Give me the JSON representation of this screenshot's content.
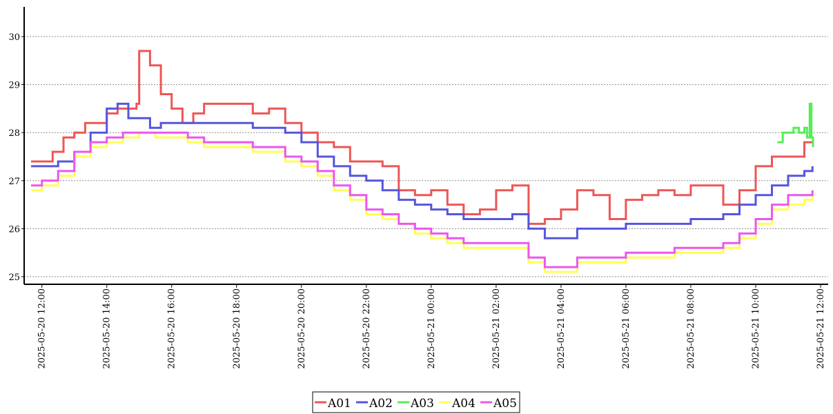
{
  "chart_data": {
    "type": "line",
    "title": "",
    "xlabel": "",
    "ylabel": "",
    "x_range": [
      "2025-05-20 11:40",
      "2025-05-21 12:00"
    ],
    "ylim": [
      24.8,
      30.6
    ],
    "y_ticks": [
      25,
      26,
      27,
      28,
      29,
      30
    ],
    "x_ticks": [
      "2025-05-20 12:00",
      "2025-05-20 14:00",
      "2025-05-20 16:00",
      "2025-05-20 18:00",
      "2025-05-20 20:00",
      "2025-05-20 22:00",
      "2025-05-21 00:00",
      "2025-05-21 02:00",
      "2025-05-21 04:00",
      "2025-05-21 06:00",
      "2025-05-21 08:00",
      "2025-05-21 10:00",
      "2025-05-21 12:00"
    ],
    "grid": "horizontal-dotted",
    "legend_position": "bottom-center",
    "series": [
      {
        "name": "A01",
        "color": "#ee5555",
        "points": [
          [
            "2025-05-20 11:40",
            27.4
          ],
          [
            "2025-05-20 12:00",
            27.4
          ],
          [
            "2025-05-20 12:20",
            27.6
          ],
          [
            "2025-05-20 12:40",
            27.9
          ],
          [
            "2025-05-20 13:00",
            28.0
          ],
          [
            "2025-05-20 13:20",
            28.2
          ],
          [
            "2025-05-20 13:40",
            28.2
          ],
          [
            "2025-05-20 14:00",
            28.4
          ],
          [
            "2025-05-20 14:20",
            28.5
          ],
          [
            "2025-05-20 14:40",
            28.5
          ],
          [
            "2025-05-20 14:55",
            28.6
          ],
          [
            "2025-05-20 15:00",
            29.7
          ],
          [
            "2025-05-20 15:20",
            29.4
          ],
          [
            "2025-05-20 15:40",
            28.8
          ],
          [
            "2025-05-20 16:00",
            28.5
          ],
          [
            "2025-05-20 16:20",
            28.2
          ],
          [
            "2025-05-20 16:40",
            28.4
          ],
          [
            "2025-05-20 17:00",
            28.6
          ],
          [
            "2025-05-20 17:30",
            28.6
          ],
          [
            "2025-05-20 18:00",
            28.6
          ],
          [
            "2025-05-20 18:30",
            28.4
          ],
          [
            "2025-05-20 19:00",
            28.5
          ],
          [
            "2025-05-20 19:30",
            28.2
          ],
          [
            "2025-05-20 20:00",
            28.0
          ],
          [
            "2025-05-20 20:30",
            27.8
          ],
          [
            "2025-05-20 21:00",
            27.7
          ],
          [
            "2025-05-20 21:30",
            27.4
          ],
          [
            "2025-05-20 22:00",
            27.4
          ],
          [
            "2025-05-20 22:30",
            27.3
          ],
          [
            "2025-05-20 23:00",
            26.8
          ],
          [
            "2025-05-20 23:30",
            26.7
          ],
          [
            "2025-05-21 00:00",
            26.8
          ],
          [
            "2025-05-21 00:30",
            26.5
          ],
          [
            "2025-05-21 01:00",
            26.3
          ],
          [
            "2025-05-21 01:30",
            26.4
          ],
          [
            "2025-05-21 02:00",
            26.8
          ],
          [
            "2025-05-21 02:30",
            26.9
          ],
          [
            "2025-05-21 03:00",
            26.1
          ],
          [
            "2025-05-21 03:30",
            26.2
          ],
          [
            "2025-05-21 04:00",
            26.4
          ],
          [
            "2025-05-21 04:30",
            26.8
          ],
          [
            "2025-05-21 05:00",
            26.7
          ],
          [
            "2025-05-21 05:30",
            26.2
          ],
          [
            "2025-05-21 06:00",
            26.6
          ],
          [
            "2025-05-21 06:30",
            26.7
          ],
          [
            "2025-05-21 07:00",
            26.8
          ],
          [
            "2025-05-21 07:30",
            26.7
          ],
          [
            "2025-05-21 08:00",
            26.9
          ],
          [
            "2025-05-21 08:30",
            26.9
          ],
          [
            "2025-05-21 09:00",
            26.5
          ],
          [
            "2025-05-21 09:30",
            26.8
          ],
          [
            "2025-05-21 10:00",
            27.3
          ],
          [
            "2025-05-21 10:30",
            27.5
          ],
          [
            "2025-05-21 11:00",
            27.5
          ],
          [
            "2025-05-21 11:30",
            27.8
          ],
          [
            "2025-05-21 11:45",
            27.8
          ]
        ]
      },
      {
        "name": "A02",
        "color": "#5555dd",
        "points": [
          [
            "2025-05-20 11:40",
            27.3
          ],
          [
            "2025-05-20 12:00",
            27.3
          ],
          [
            "2025-05-20 12:30",
            27.4
          ],
          [
            "2025-05-20 13:00",
            27.6
          ],
          [
            "2025-05-20 13:30",
            28.0
          ],
          [
            "2025-05-20 14:00",
            28.5
          ],
          [
            "2025-05-20 14:20",
            28.6
          ],
          [
            "2025-05-20 14:40",
            28.3
          ],
          [
            "2025-05-20 15:00",
            28.3
          ],
          [
            "2025-05-20 15:20",
            28.1
          ],
          [
            "2025-05-20 15:40",
            28.2
          ],
          [
            "2025-05-20 16:00",
            28.2
          ],
          [
            "2025-05-20 17:00",
            28.2
          ],
          [
            "2025-05-20 18:00",
            28.2
          ],
          [
            "2025-05-20 18:30",
            28.1
          ],
          [
            "2025-05-20 19:00",
            28.1
          ],
          [
            "2025-05-20 19:30",
            28.0
          ],
          [
            "2025-05-20 20:00",
            27.8
          ],
          [
            "2025-05-20 20:30",
            27.5
          ],
          [
            "2025-05-20 21:00",
            27.3
          ],
          [
            "2025-05-20 21:30",
            27.1
          ],
          [
            "2025-05-20 22:00",
            27.0
          ],
          [
            "2025-05-20 22:30",
            26.8
          ],
          [
            "2025-05-20 23:00",
            26.6
          ],
          [
            "2025-05-20 23:30",
            26.5
          ],
          [
            "2025-05-21 00:00",
            26.4
          ],
          [
            "2025-05-21 00:30",
            26.3
          ],
          [
            "2025-05-21 01:00",
            26.2
          ],
          [
            "2025-05-21 02:00",
            26.2
          ],
          [
            "2025-05-21 02:30",
            26.3
          ],
          [
            "2025-05-21 03:00",
            26.0
          ],
          [
            "2025-05-21 03:30",
            25.8
          ],
          [
            "2025-05-21 04:00",
            25.8
          ],
          [
            "2025-05-21 04:30",
            26.0
          ],
          [
            "2025-05-21 05:00",
            26.0
          ],
          [
            "2025-05-21 05:30",
            26.0
          ],
          [
            "2025-05-21 06:00",
            26.1
          ],
          [
            "2025-05-21 07:00",
            26.1
          ],
          [
            "2025-05-21 08:00",
            26.2
          ],
          [
            "2025-05-21 09:00",
            26.3
          ],
          [
            "2025-05-21 09:30",
            26.5
          ],
          [
            "2025-05-21 10:00",
            26.7
          ],
          [
            "2025-05-21 10:30",
            26.9
          ],
          [
            "2025-05-21 11:00",
            27.1
          ],
          [
            "2025-05-21 11:30",
            27.2
          ],
          [
            "2025-05-21 11:45",
            27.3
          ]
        ]
      },
      {
        "name": "A03",
        "color": "#55ee55",
        "points": [
          [
            "2025-05-21 10:40",
            27.8
          ],
          [
            "2025-05-21 10:50",
            28.0
          ],
          [
            "2025-05-21 11:00",
            28.0
          ],
          [
            "2025-05-21 11:10",
            28.1
          ],
          [
            "2025-05-21 11:20",
            28.0
          ],
          [
            "2025-05-21 11:30",
            28.1
          ],
          [
            "2025-05-21 11:35",
            27.9
          ],
          [
            "2025-05-21 11:40",
            28.6
          ],
          [
            "2025-05-21 11:43",
            27.9
          ],
          [
            "2025-05-21 11:46",
            27.7
          ]
        ]
      },
      {
        "name": "A04",
        "color": "#ffff55",
        "points": [
          [
            "2025-05-20 11:40",
            26.8
          ],
          [
            "2025-05-20 12:00",
            26.9
          ],
          [
            "2025-05-20 12:30",
            27.1
          ],
          [
            "2025-05-20 13:00",
            27.5
          ],
          [
            "2025-05-20 13:30",
            27.7
          ],
          [
            "2025-05-20 14:00",
            27.8
          ],
          [
            "2025-05-20 14:30",
            27.9
          ],
          [
            "2025-05-20 15:00",
            28.0
          ],
          [
            "2025-05-20 15:30",
            27.9
          ],
          [
            "2025-05-20 16:00",
            27.9
          ],
          [
            "2025-05-20 16:30",
            27.8
          ],
          [
            "2025-05-20 17:00",
            27.7
          ],
          [
            "2025-05-20 18:00",
            27.7
          ],
          [
            "2025-05-20 18:30",
            27.6
          ],
          [
            "2025-05-20 19:00",
            27.6
          ],
          [
            "2025-05-20 19:30",
            27.4
          ],
          [
            "2025-05-20 20:00",
            27.3
          ],
          [
            "2025-05-20 20:30",
            27.1
          ],
          [
            "2025-05-20 21:00",
            26.8
          ],
          [
            "2025-05-20 21:30",
            26.6
          ],
          [
            "2025-05-20 22:00",
            26.3
          ],
          [
            "2025-05-20 22:30",
            26.2
          ],
          [
            "2025-05-20 23:00",
            26.1
          ],
          [
            "2025-05-20 23:30",
            25.9
          ],
          [
            "2025-05-21 00:00",
            25.8
          ],
          [
            "2025-05-21 00:30",
            25.7
          ],
          [
            "2025-05-21 01:00",
            25.6
          ],
          [
            "2025-05-21 02:00",
            25.6
          ],
          [
            "2025-05-21 02:30",
            25.6
          ],
          [
            "2025-05-21 03:00",
            25.3
          ],
          [
            "2025-05-21 03:30",
            25.1
          ],
          [
            "2025-05-21 04:00",
            25.1
          ],
          [
            "2025-05-21 04:30",
            25.3
          ],
          [
            "2025-05-21 05:00",
            25.3
          ],
          [
            "2025-05-21 05:30",
            25.3
          ],
          [
            "2025-05-21 06:00",
            25.4
          ],
          [
            "2025-05-21 07:00",
            25.4
          ],
          [
            "2025-05-21 07:30",
            25.5
          ],
          [
            "2025-05-21 08:00",
            25.5
          ],
          [
            "2025-05-21 09:00",
            25.6
          ],
          [
            "2025-05-21 09:30",
            25.8
          ],
          [
            "2025-05-21 10:00",
            26.1
          ],
          [
            "2025-05-21 10:30",
            26.4
          ],
          [
            "2025-05-21 11:00",
            26.5
          ],
          [
            "2025-05-21 11:30",
            26.6
          ],
          [
            "2025-05-21 11:45",
            26.7
          ]
        ]
      },
      {
        "name": "A05",
        "color": "#ee55ee",
        "points": [
          [
            "2025-05-20 11:40",
            26.9
          ],
          [
            "2025-05-20 12:00",
            27.0
          ],
          [
            "2025-05-20 12:30",
            27.2
          ],
          [
            "2025-05-20 13:00",
            27.6
          ],
          [
            "2025-05-20 13:30",
            27.8
          ],
          [
            "2025-05-20 14:00",
            27.9
          ],
          [
            "2025-05-20 14:30",
            28.0
          ],
          [
            "2025-05-20 15:00",
            28.0
          ],
          [
            "2025-05-20 15:30",
            28.0
          ],
          [
            "2025-05-20 16:00",
            28.0
          ],
          [
            "2025-05-20 16:30",
            27.9
          ],
          [
            "2025-05-20 17:00",
            27.8
          ],
          [
            "2025-05-20 18:00",
            27.8
          ],
          [
            "2025-05-20 18:30",
            27.7
          ],
          [
            "2025-05-20 19:00",
            27.7
          ],
          [
            "2025-05-20 19:30",
            27.5
          ],
          [
            "2025-05-20 20:00",
            27.4
          ],
          [
            "2025-05-20 20:30",
            27.2
          ],
          [
            "2025-05-20 21:00",
            26.9
          ],
          [
            "2025-05-20 21:30",
            26.7
          ],
          [
            "2025-05-20 22:00",
            26.4
          ],
          [
            "2025-05-20 22:30",
            26.3
          ],
          [
            "2025-05-20 23:00",
            26.1
          ],
          [
            "2025-05-20 23:30",
            26.0
          ],
          [
            "2025-05-21 00:00",
            25.9
          ],
          [
            "2025-05-21 00:30",
            25.8
          ],
          [
            "2025-05-21 01:00",
            25.7
          ],
          [
            "2025-05-21 02:00",
            25.7
          ],
          [
            "2025-05-21 02:30",
            25.7
          ],
          [
            "2025-05-21 03:00",
            25.4
          ],
          [
            "2025-05-21 03:30",
            25.2
          ],
          [
            "2025-05-21 04:00",
            25.2
          ],
          [
            "2025-05-21 04:30",
            25.4
          ],
          [
            "2025-05-21 05:00",
            25.4
          ],
          [
            "2025-05-21 05:30",
            25.4
          ],
          [
            "2025-05-21 06:00",
            25.5
          ],
          [
            "2025-05-21 07:00",
            25.5
          ],
          [
            "2025-05-21 07:30",
            25.6
          ],
          [
            "2025-05-21 08:00",
            25.6
          ],
          [
            "2025-05-21 09:00",
            25.7
          ],
          [
            "2025-05-21 09:30",
            25.9
          ],
          [
            "2025-05-21 10:00",
            26.2
          ],
          [
            "2025-05-21 10:30",
            26.5
          ],
          [
            "2025-05-21 11:00",
            26.7
          ],
          [
            "2025-05-21 11:30",
            26.7
          ],
          [
            "2025-05-21 11:45",
            26.8
          ]
        ]
      }
    ]
  }
}
